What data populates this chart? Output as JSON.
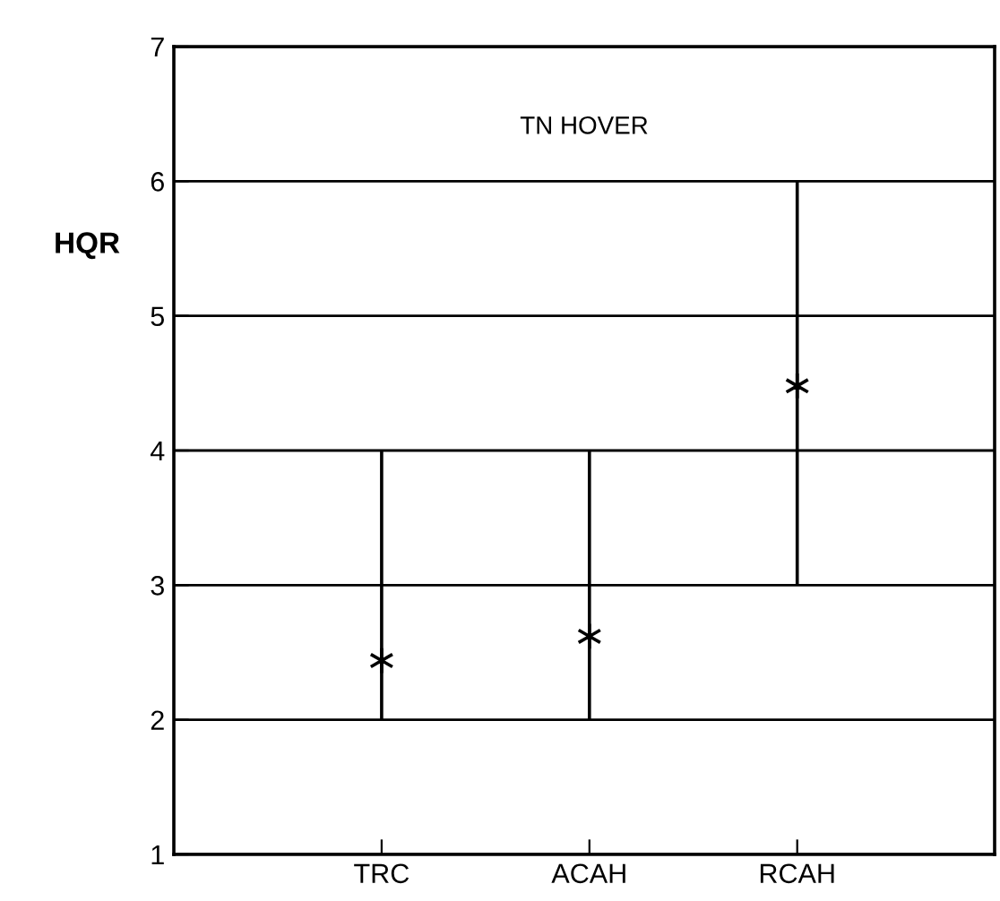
{
  "chart_data": {
    "type": "scatter",
    "ylabel": "HQR",
    "annotations": [
      "TN HOVER"
    ],
    "categories": [
      "TRC",
      "ACAH",
      "RCAH"
    ],
    "values": [
      2.44,
      2.62,
      4.48
    ],
    "errors": [
      [
        2,
        4
      ],
      [
        2,
        4
      ],
      [
        3,
        6
      ]
    ],
    "color": "#000000",
    "marker": "cross",
    "ylim": [
      1,
      7
    ],
    "yticks": [
      1,
      2,
      3,
      4,
      5,
      6,
      7
    ],
    "grid": "y"
  }
}
